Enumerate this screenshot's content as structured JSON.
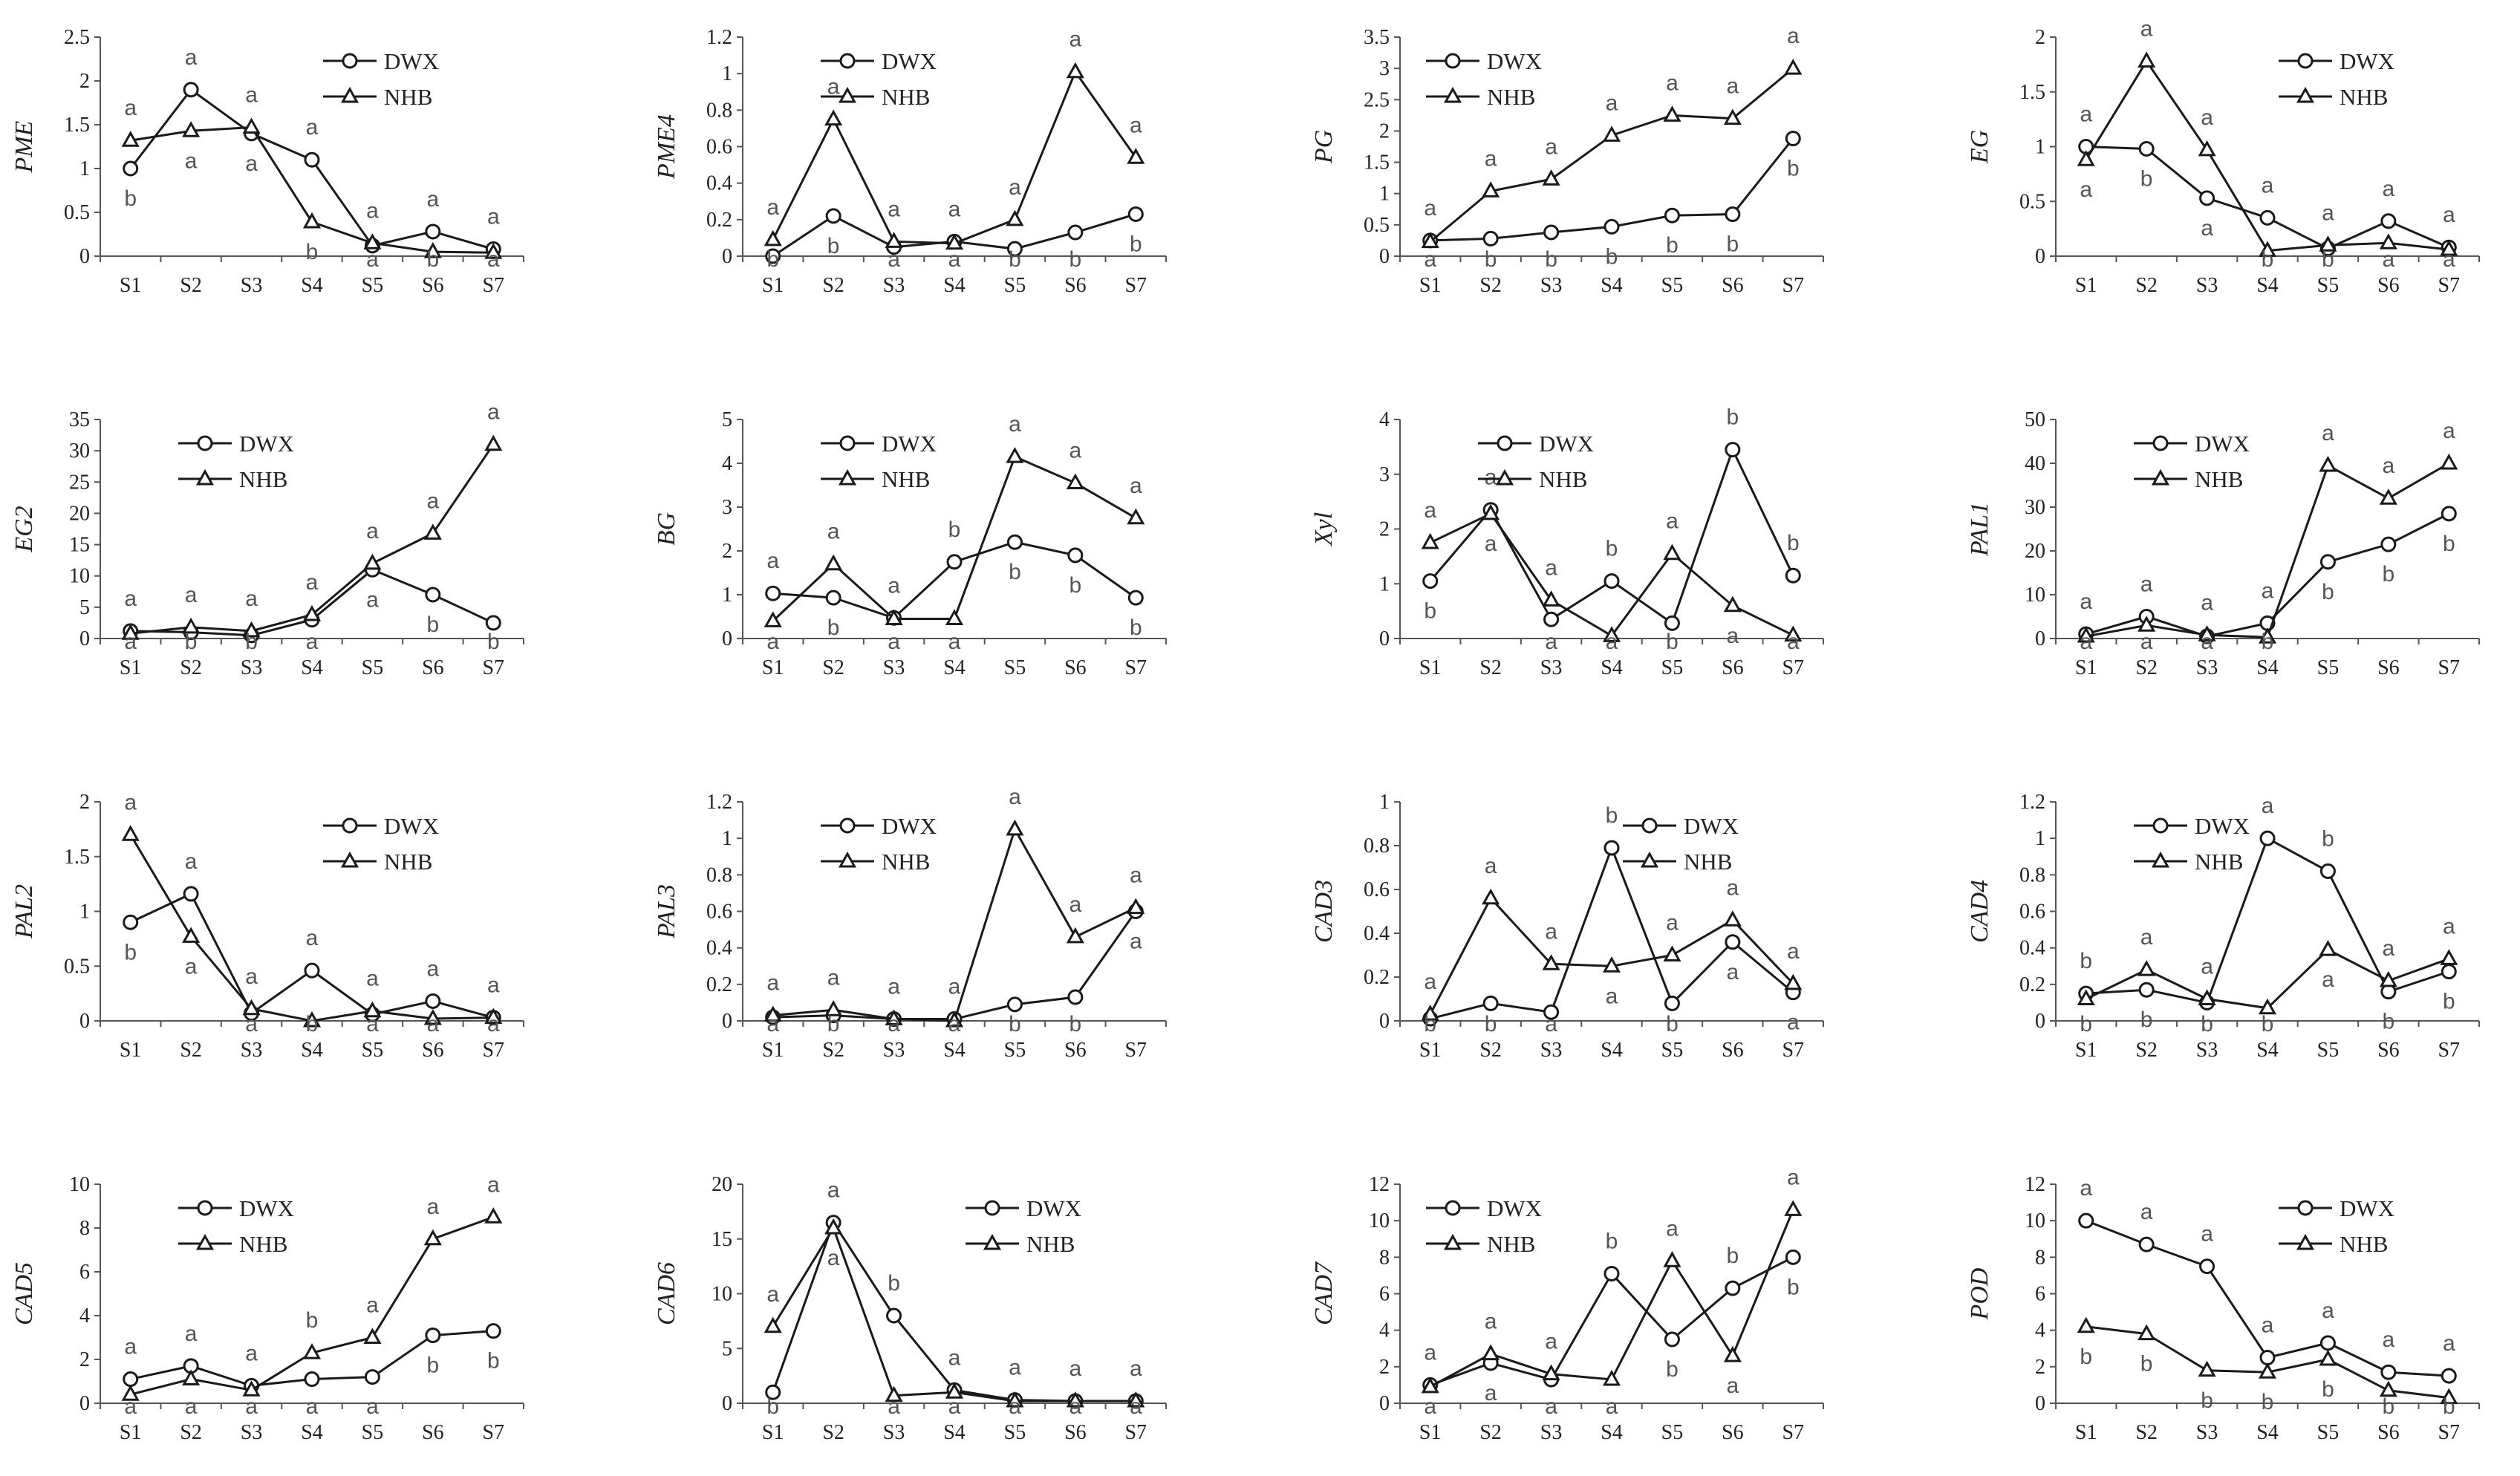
{
  "chart_data": [
    {
      "type": "line",
      "ylabel": "PME",
      "categories": [
        "S1",
        "S2",
        "S3",
        "S4",
        "S5",
        "S6",
        "S7"
      ],
      "ylim": [
        0,
        2.5
      ],
      "yticks": [
        "0",
        "0.5",
        "1",
        "1.5",
        "2",
        "2.5"
      ],
      "legend": "top-right",
      "series": [
        {
          "name": "DWX",
          "values": [
            1.0,
            1.9,
            1.4,
            1.1,
            0.12,
            0.28,
            0.08
          ],
          "letters": [
            "b",
            "a",
            "a",
            "a",
            "a",
            "a",
            "a"
          ]
        },
        {
          "name": "NHB",
          "values": [
            1.32,
            1.43,
            1.47,
            0.39,
            0.15,
            0.05,
            0.04
          ],
          "letters": [
            "a",
            "a",
            "a",
            "b",
            "a",
            "b",
            "a"
          ]
        }
      ]
    },
    {
      "type": "line",
      "ylabel": "PME4",
      "categories": [
        "S1",
        "S2",
        "S3",
        "S4",
        "S5",
        "S6",
        "S7"
      ],
      "ylim": [
        0,
        1.2
      ],
      "yticks": [
        "0",
        "0.2",
        "0.4",
        "0.6",
        "0.8",
        "1",
        "1.2"
      ],
      "legend": "top-center",
      "series": [
        {
          "name": "DWX",
          "values": [
            0.0,
            0.22,
            0.05,
            0.08,
            0.04,
            0.13,
            0.23
          ],
          "letters": [
            "b",
            "b",
            "a",
            "a",
            "b",
            "b",
            "b"
          ]
        },
        {
          "name": "NHB",
          "values": [
            0.09,
            0.75,
            0.08,
            0.07,
            0.2,
            1.01,
            0.54
          ],
          "letters": [
            "a",
            "a",
            "a",
            "a",
            "a",
            "a",
            "a"
          ]
        }
      ]
    },
    {
      "type": "line",
      "ylabel": "PG",
      "categories": [
        "S1",
        "S2",
        "S3",
        "S4",
        "S5",
        "S6",
        "S7"
      ],
      "ylim": [
        0,
        3.5
      ],
      "yticks": [
        "0",
        "0.5",
        "1",
        "1.5",
        "2",
        "2.5",
        "3",
        "3.5"
      ],
      "legend": "top-left",
      "series": [
        {
          "name": "DWX",
          "values": [
            0.25,
            0.28,
            0.38,
            0.47,
            0.65,
            0.67,
            1.88
          ],
          "letters": [
            "a",
            "b",
            "b",
            "b",
            "b",
            "b",
            "b"
          ]
        },
        {
          "name": "NHB",
          "values": [
            0.23,
            1.04,
            1.23,
            1.93,
            2.25,
            2.2,
            3.0
          ],
          "letters": [
            "a",
            "a",
            "a",
            "a",
            "a",
            "a",
            "a"
          ]
        }
      ]
    },
    {
      "type": "line",
      "ylabel": "EG",
      "categories": [
        "S1",
        "S2",
        "S3",
        "S4",
        "S5",
        "S6",
        "S7"
      ],
      "ylim": [
        0,
        2
      ],
      "yticks": [
        "0",
        "0.5",
        "1",
        "1.5",
        "2"
      ],
      "legend": "top-right",
      "series": [
        {
          "name": "DWX",
          "values": [
            1.0,
            0.98,
            0.53,
            0.35,
            0.07,
            0.32,
            0.08
          ],
          "letters": [
            "a",
            "b",
            "a",
            "a",
            "b",
            "a",
            "a"
          ]
        },
        {
          "name": "NHB",
          "values": [
            0.88,
            1.78,
            0.97,
            0.05,
            0.1,
            0.12,
            0.06
          ],
          "letters": [
            "a",
            "a",
            "a",
            "b",
            "a",
            "a",
            "a"
          ]
        }
      ]
    },
    {
      "type": "line",
      "ylabel": "EG2",
      "categories": [
        "S1",
        "S2",
        "S3",
        "S4",
        "S5",
        "S6",
        "S7"
      ],
      "ylim": [
        0,
        35
      ],
      "yticks": [
        "0",
        "5",
        "10",
        "15",
        "20",
        "25",
        "30",
        "35"
      ],
      "legend": "top-center",
      "series": [
        {
          "name": "DWX",
          "values": [
            1.2,
            1.0,
            0.5,
            3.0,
            11.0,
            7.0,
            2.5
          ],
          "letters": [
            "a",
            "b",
            "b",
            "a",
            "a",
            "b",
            "b"
          ]
        },
        {
          "name": "NHB",
          "values": [
            0.8,
            1.8,
            1.2,
            3.8,
            12.0,
            16.8,
            31.0
          ],
          "letters": [
            "a",
            "a",
            "a",
            "a",
            "a",
            "a",
            "a"
          ]
        }
      ]
    },
    {
      "type": "line",
      "ylabel": "BG",
      "categories": [
        "S1",
        "S2",
        "S3",
        "S4",
        "S5",
        "S6",
        "S7"
      ],
      "ylim": [
        0,
        5
      ],
      "yticks": [
        "0",
        "1",
        "2",
        "3",
        "4",
        "5"
      ],
      "legend": "top-center",
      "series": [
        {
          "name": "DWX",
          "values": [
            1.03,
            0.93,
            0.47,
            1.75,
            2.2,
            1.9,
            0.93
          ],
          "letters": [
            "a",
            "b",
            "a",
            "b",
            "b",
            "b",
            "b"
          ]
        },
        {
          "name": "NHB",
          "values": [
            0.4,
            1.7,
            0.45,
            0.45,
            4.15,
            3.55,
            2.75
          ],
          "letters": [
            "a",
            "a",
            "a",
            "a",
            "a",
            "a",
            "a"
          ]
        }
      ]
    },
    {
      "type": "line",
      "ylabel": "Xyl",
      "categories": [
        "S1",
        "S2",
        "S3",
        "S4",
        "S5",
        "S6",
        "S7"
      ],
      "ylim": [
        0,
        4
      ],
      "yticks": [
        "0",
        "1",
        "2",
        "3",
        "4"
      ],
      "legend": "top-center",
      "series": [
        {
          "name": "DWX",
          "values": [
            1.05,
            2.35,
            0.35,
            1.05,
            0.28,
            3.45,
            1.15
          ],
          "letters": [
            "b",
            "a",
            "a",
            "b",
            "b",
            "b",
            "b"
          ]
        },
        {
          "name": "NHB",
          "values": [
            1.75,
            2.28,
            0.7,
            0.05,
            1.55,
            0.6,
            0.06
          ],
          "letters": [
            "a",
            "a",
            "a",
            "a",
            "a",
            "a",
            "a"
          ]
        }
      ]
    },
    {
      "type": "line",
      "ylabel": "PAL1",
      "categories": [
        "S1",
        "S2",
        "S3",
        "S4",
        "S5",
        "S6",
        "S7"
      ],
      "ylim": [
        0,
        50
      ],
      "yticks": [
        "0",
        "10",
        "20",
        "30",
        "40",
        "50"
      ],
      "legend": "top-center",
      "series": [
        {
          "name": "DWX",
          "values": [
            1.0,
            5.0,
            0.5,
            3.5,
            17.5,
            21.5,
            28.5
          ],
          "letters": [
            "a",
            "a",
            "a",
            "a",
            "b",
            "b",
            "b"
          ]
        },
        {
          "name": "NHB",
          "values": [
            0.5,
            3.0,
            0.8,
            0.3,
            39.5,
            32.0,
            40.0
          ],
          "letters": [
            "a",
            "a",
            "a",
            "b",
            "a",
            "a",
            "a"
          ]
        }
      ]
    },
    {
      "type": "line",
      "ylabel": "PAL2",
      "categories": [
        "S1",
        "S2",
        "S3",
        "S4",
        "S5",
        "S6",
        "S7"
      ],
      "ylim": [
        0,
        2
      ],
      "yticks": [
        "0",
        "0.5",
        "1",
        "1.5",
        "2"
      ],
      "legend": "top-right",
      "series": [
        {
          "name": "DWX",
          "values": [
            0.9,
            1.16,
            0.07,
            0.46,
            0.06,
            0.18,
            0.03
          ],
          "letters": [
            "b",
            "a",
            "a",
            "a",
            "a",
            "a",
            "a"
          ]
        },
        {
          "name": "NHB",
          "values": [
            1.7,
            0.77,
            0.11,
            0.0,
            0.09,
            0.02,
            0.03
          ],
          "letters": [
            "a",
            "a",
            "a",
            "b",
            "a",
            "a",
            "a"
          ]
        }
      ]
    },
    {
      "type": "line",
      "ylabel": "PAL3",
      "categories": [
        "S1",
        "S2",
        "S3",
        "S4",
        "S5",
        "S6",
        "S7"
      ],
      "ylim": [
        0,
        1.2
      ],
      "yticks": [
        "0",
        "0.2",
        "0.4",
        "0.6",
        "0.8",
        "1",
        "1.2"
      ],
      "legend": "top-center",
      "series": [
        {
          "name": "DWX",
          "values": [
            0.02,
            0.03,
            0.01,
            0.01,
            0.09,
            0.13,
            0.6
          ],
          "letters": [
            "a",
            "b",
            "a",
            "a",
            "b",
            "b",
            "a"
          ]
        },
        {
          "name": "NHB",
          "values": [
            0.03,
            0.06,
            0.01,
            0.0,
            1.05,
            0.46,
            0.62
          ],
          "letters": [
            "a",
            "a",
            "a",
            "a",
            "a",
            "a",
            "a"
          ]
        }
      ]
    },
    {
      "type": "line",
      "ylabel": "CAD3",
      "categories": [
        "S1",
        "S2",
        "S3",
        "S4",
        "S5",
        "S6",
        "S7"
      ],
      "ylim": [
        0,
        1
      ],
      "yticks": [
        "0",
        "0.2",
        "0.4",
        "0.6",
        "0.8",
        "1"
      ],
      "legend": "top-right",
      "series": [
        {
          "name": "DWX",
          "values": [
            0.01,
            0.08,
            0.04,
            0.79,
            0.08,
            0.36,
            0.13
          ],
          "letters": [
            "b",
            "b",
            "a",
            "b",
            "b",
            "a",
            "a"
          ]
        },
        {
          "name": "NHB",
          "values": [
            0.03,
            0.56,
            0.26,
            0.25,
            0.3,
            0.46,
            0.17
          ],
          "letters": [
            "a",
            "a",
            "a",
            "a",
            "a",
            "a",
            "a"
          ]
        }
      ]
    },
    {
      "type": "line",
      "ylabel": "CAD4",
      "categories": [
        "S1",
        "S2",
        "S3",
        "S4",
        "S5",
        "S6",
        "S7"
      ],
      "ylim": [
        0,
        1.2
      ],
      "yticks": [
        "0",
        "0.2",
        "0.4",
        "0.6",
        "0.8",
        "1",
        "1.2"
      ],
      "legend": "top-center",
      "series": [
        {
          "name": "DWX",
          "values": [
            0.15,
            0.17,
            0.1,
            1.0,
            0.82,
            0.16,
            0.27
          ],
          "letters": [
            "b",
            "b",
            "b",
            "a",
            "b",
            "b",
            "b"
          ]
        },
        {
          "name": "NHB",
          "values": [
            0.12,
            0.28,
            0.12,
            0.07,
            0.39,
            0.22,
            0.34
          ],
          "letters": [
            "b",
            "a",
            "a",
            "b",
            "a",
            "a",
            "a"
          ]
        }
      ]
    },
    {
      "type": "line",
      "ylabel": "CAD5",
      "categories": [
        "S1",
        "S2",
        "S3",
        "S4",
        "S5",
        "S6",
        "S7"
      ],
      "ylim": [
        0,
        10
      ],
      "yticks": [
        "0",
        "2",
        "4",
        "6",
        "8",
        "10"
      ],
      "legend": "top-center",
      "series": [
        {
          "name": "DWX",
          "values": [
            1.1,
            1.7,
            0.8,
            1.1,
            1.2,
            3.1,
            3.3
          ],
          "letters": [
            "a",
            "a",
            "a",
            "a",
            "a",
            "b",
            "b"
          ]
        },
        {
          "name": "NHB",
          "values": [
            0.4,
            1.1,
            0.6,
            2.3,
            3.0,
            7.5,
            8.5
          ],
          "letters": [
            "a",
            "a",
            "a",
            "b",
            "a",
            "a",
            "a"
          ]
        }
      ]
    },
    {
      "type": "line",
      "ylabel": "CAD6",
      "categories": [
        "S1",
        "S2",
        "S3",
        "S4",
        "S5",
        "S6",
        "S7"
      ],
      "ylim": [
        0,
        20
      ],
      "yticks": [
        "0",
        "5",
        "10",
        "15",
        "20"
      ],
      "legend": "top-right",
      "series": [
        {
          "name": "DWX",
          "values": [
            1.0,
            16.5,
            8.0,
            1.2,
            0.3,
            0.2,
            0.2
          ],
          "letters": [
            "b",
            "a",
            "b",
            "a",
            "a",
            "a",
            "a"
          ]
        },
        {
          "name": "NHB",
          "values": [
            7.0,
            16.0,
            0.7,
            1.0,
            0.2,
            0.2,
            0.2
          ],
          "letters": [
            "a",
            "a",
            "a",
            "a",
            "a",
            "a",
            "a"
          ]
        }
      ]
    },
    {
      "type": "line",
      "ylabel": "CAD7",
      "categories": [
        "S1",
        "S2",
        "S3",
        "S4",
        "S5",
        "S6",
        "S7"
      ],
      "ylim": [
        0,
        12
      ],
      "yticks": [
        "0",
        "2",
        "4",
        "6",
        "8",
        "10",
        "12"
      ],
      "legend": "top-left",
      "series": [
        {
          "name": "DWX",
          "values": [
            1.0,
            2.2,
            1.3,
            7.1,
            3.5,
            6.3,
            8.0
          ],
          "letters": [
            "a",
            "a",
            "a",
            "b",
            "b",
            "b",
            "b"
          ]
        },
        {
          "name": "NHB",
          "values": [
            0.9,
            2.7,
            1.6,
            1.3,
            7.8,
            2.6,
            10.6
          ],
          "letters": [
            "a",
            "a",
            "a",
            "a",
            "a",
            "a",
            "a"
          ]
        }
      ]
    },
    {
      "type": "line",
      "ylabel": "POD",
      "categories": [
        "S1",
        "S2",
        "S3",
        "S4",
        "S5",
        "S6",
        "S7"
      ],
      "ylim": [
        0,
        12
      ],
      "yticks": [
        "0",
        "2",
        "4",
        "6",
        "8",
        "10",
        "12"
      ],
      "legend": "top-right",
      "series": [
        {
          "name": "DWX",
          "values": [
            10.0,
            8.7,
            7.5,
            2.5,
            3.3,
            1.7,
            1.5
          ],
          "letters": [
            "a",
            "a",
            "a",
            "a",
            "a",
            "a",
            "a"
          ]
        },
        {
          "name": "NHB",
          "values": [
            4.2,
            3.8,
            1.8,
            1.7,
            2.4,
            0.7,
            0.3
          ],
          "letters": [
            "b",
            "b",
            "b",
            "b",
            "b",
            "b",
            "b"
          ]
        }
      ]
    }
  ]
}
